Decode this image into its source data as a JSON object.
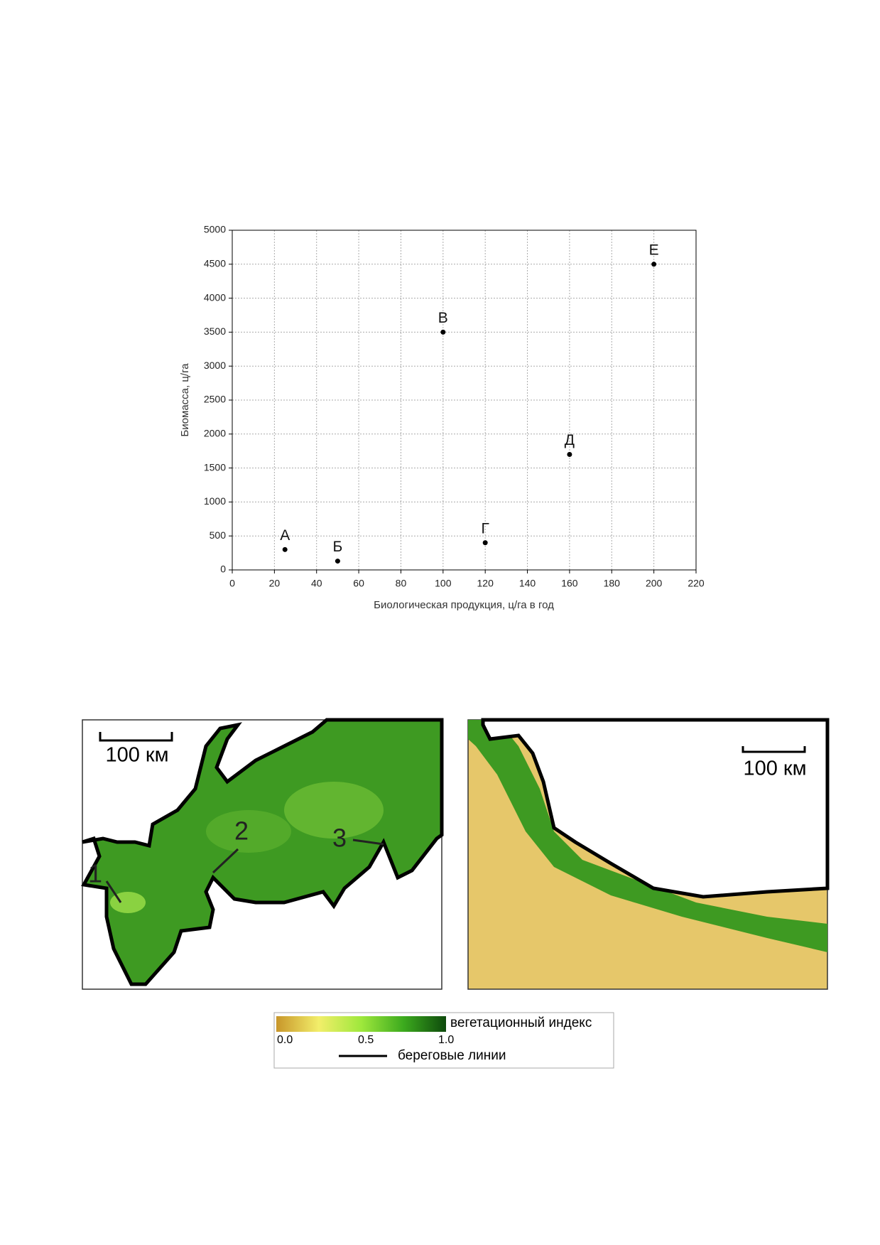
{
  "chart_data": {
    "type": "scatter",
    "x_label": "Биологическая продукция, ц/га в год",
    "y_label": "Биомасса, ц/га",
    "x": [
      25,
      50,
      100,
      120,
      160,
      200
    ],
    "values": [
      300,
      130,
      3500,
      400,
      1700,
      4500
    ],
    "point_labels": [
      "А",
      "Б",
      "В",
      "Г",
      "Д",
      "Е"
    ],
    "color": "#000000",
    "xlim": [
      0,
      220
    ],
    "xticks": [
      0,
      20,
      40,
      60,
      80,
      100,
      120,
      140,
      160,
      180,
      200,
      220
    ],
    "ylim": [
      0,
      5000
    ],
    "yticks": [
      0,
      500,
      1000,
      1500,
      2000,
      2500,
      3000,
      3500,
      4000,
      4500,
      5000
    ],
    "grid": true
  },
  "maps": {
    "left": {
      "scale": "100 км",
      "markers": [
        "1",
        "2",
        "3"
      ]
    },
    "right": {
      "scale": "100 км"
    }
  },
  "legend": {
    "index_label": "вегетационный индекс",
    "ticks": [
      "0.0",
      "0.5",
      "1.0"
    ],
    "coast_label": "береговые линии"
  }
}
